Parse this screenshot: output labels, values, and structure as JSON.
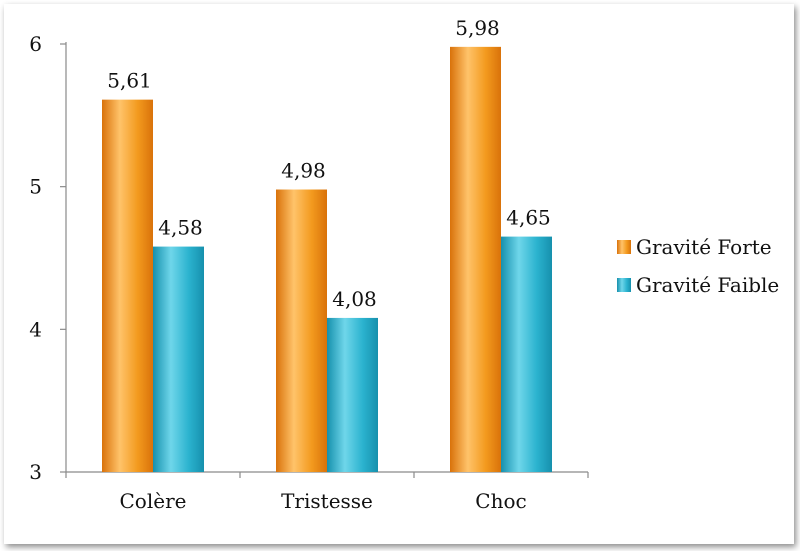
{
  "chart_data": {
    "type": "bar",
    "categories": [
      "Colère",
      "Tristesse",
      "Choc"
    ],
    "series": [
      {
        "name": "Gravité Forte",
        "values": [
          5.61,
          4.98,
          5.98
        ],
        "labels": [
          "5,61",
          "4,98",
          "5,98"
        ],
        "color": "#f39a1e",
        "color_light": "#ffc36a",
        "color_dark": "#d9720a"
      },
      {
        "name": "Gravité Faible",
        "values": [
          4.58,
          4.08,
          4.65
        ],
        "labels": [
          "4,58",
          "4,08",
          "4,65"
        ],
        "color": "#2bb3cf",
        "color_light": "#6fd6ea",
        "color_dark": "#1690ad"
      }
    ],
    "yticks": [
      3,
      4,
      5,
      6
    ],
    "ylim": [
      3,
      6
    ],
    "title": "",
    "xlabel": "",
    "ylabel": "",
    "grid": false,
    "legend_position": "right"
  }
}
